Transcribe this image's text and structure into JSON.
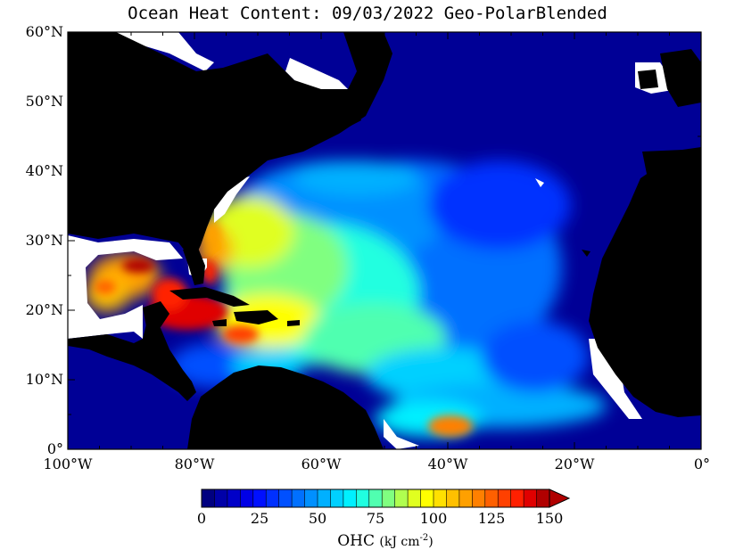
{
  "title": "Ocean Heat Content: 09/03/2022 Geo-PolarBlended",
  "region": {
    "lon_min": -100,
    "lon_max": 0,
    "lat_min": 0,
    "lat_max": 60
  },
  "y_ticks": [
    "0°",
    "10°N",
    "20°N",
    "30°N",
    "40°N",
    "50°N",
    "60°N"
  ],
  "y_tick_values": [
    0,
    10,
    20,
    30,
    40,
    50,
    60
  ],
  "x_ticks": [
    "100°W",
    "80°W",
    "60°W",
    "40°W",
    "20°W",
    "0°"
  ],
  "x_tick_values": [
    -100,
    -80,
    -60,
    -40,
    -20,
    0
  ],
  "colorbar": {
    "label_main": "OHC",
    "label_units": "(kJ cm",
    "label_exp": "-2",
    "label_close": ")",
    "ticks": [
      "0",
      "25",
      "50",
      "75",
      "100",
      "125",
      "150"
    ],
    "tick_values": [
      0,
      25,
      50,
      75,
      100,
      125,
      150
    ],
    "min": 0,
    "max": 150,
    "colors": [
      "#000080",
      "#0000a8",
      "#0000c8",
      "#0000e6",
      "#0010ff",
      "#0030ff",
      "#0050ff",
      "#0070ff",
      "#0090ff",
      "#00b0ff",
      "#00d0ff",
      "#00f0ff",
      "#20ffe0",
      "#50ffb0",
      "#80ff80",
      "#b0ff50",
      "#e0ff20",
      "#ffff00",
      "#ffe000",
      "#ffc000",
      "#ffa000",
      "#ff8000",
      "#ff6000",
      "#ff4000",
      "#ff2000",
      "#e00000",
      "#b00000"
    ]
  },
  "colors": {
    "land": "#000000",
    "no_data": "#ffffff",
    "ocean_low": "#000080"
  }
}
